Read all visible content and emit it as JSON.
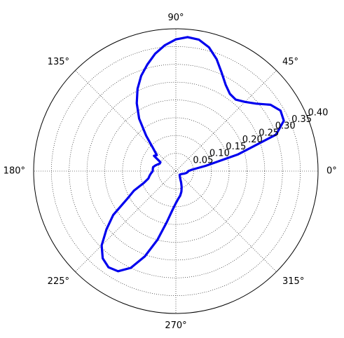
{
  "chart_data": {
    "type": "line",
    "projection": "polar",
    "title": "",
    "angle_ticks": [
      "0°",
      "45°",
      "90°",
      "135°",
      "180°",
      "225°",
      "270°",
      "315°"
    ],
    "angle_tick_degrees": [
      0,
      45,
      90,
      135,
      180,
      225,
      270,
      315
    ],
    "radial_ticks": [
      "0.05",
      "0.10",
      "0.15",
      "0.20",
      "0.25",
      "0.30",
      "0.35",
      "0.40"
    ],
    "radial_tick_values": [
      0.05,
      0.1,
      0.15,
      0.2,
      0.25,
      0.3,
      0.35,
      0.4
    ],
    "rlim": [
      0,
      0.4
    ],
    "grid": true,
    "series": [
      {
        "color": "#0000ee",
        "theta_deg": [
          0,
          5,
          10,
          15,
          20,
          25,
          30,
          35,
          40,
          45,
          50,
          55,
          60,
          65,
          70,
          75,
          80,
          85,
          90,
          95,
          100,
          105,
          110,
          115,
          120,
          125,
          130,
          135,
          140,
          145,
          150,
          155,
          160,
          165,
          170,
          175,
          180,
          185,
          190,
          195,
          200,
          205,
          210,
          215,
          220,
          225,
          230,
          235,
          240,
          245,
          250,
          255,
          260,
          265,
          270,
          275,
          280,
          285,
          290,
          295,
          300,
          305,
          310,
          315,
          320,
          325,
          330,
          335,
          340,
          345,
          350,
          355,
          360
        ],
        "r": [
          0.035,
          0.045,
          0.085,
          0.18,
          0.3,
          0.335,
          0.34,
          0.325,
          0.295,
          0.275,
          0.262,
          0.265,
          0.28,
          0.305,
          0.335,
          0.36,
          0.375,
          0.378,
          0.37,
          0.355,
          0.335,
          0.31,
          0.285,
          0.255,
          0.22,
          0.18,
          0.13,
          0.09,
          0.07,
          0.075,
          0.05,
          0.05,
          0.055,
          0.06,
          0.065,
          0.065,
          0.065,
          0.07,
          0.075,
          0.08,
          0.095,
          0.13,
          0.16,
          0.215,
          0.255,
          0.295,
          0.32,
          0.33,
          0.325,
          0.3,
          0.255,
          0.2,
          0.145,
          0.11,
          0.09,
          0.078,
          0.07,
          0.06,
          0.048,
          0.035,
          0.025,
          0.02,
          0.017,
          0.015,
          0.015,
          0.016,
          0.017,
          0.019,
          0.022,
          0.026,
          0.03,
          0.033,
          0.035
        ]
      }
    ]
  }
}
